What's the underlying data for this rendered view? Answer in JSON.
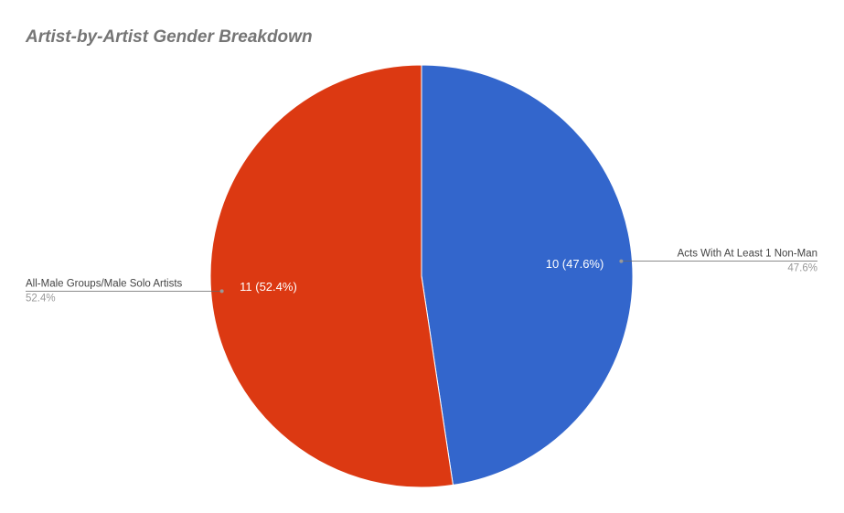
{
  "chart_data": {
    "type": "pie",
    "title": "Artist-by-Artist Gender Breakdown",
    "categories": [
      "Acts With At Least 1 Non-Man",
      "All-Male Groups/Male Solo Artists"
    ],
    "values": [
      10,
      11
    ],
    "value_labels": [
      "10 (47.6%)",
      "11 (52.4%)"
    ],
    "percents": [
      47.6,
      52.4
    ],
    "percent_labels": [
      "47.6%",
      "52.4%"
    ],
    "colors": [
      "#3366cc",
      "#dc3912"
    ]
  }
}
